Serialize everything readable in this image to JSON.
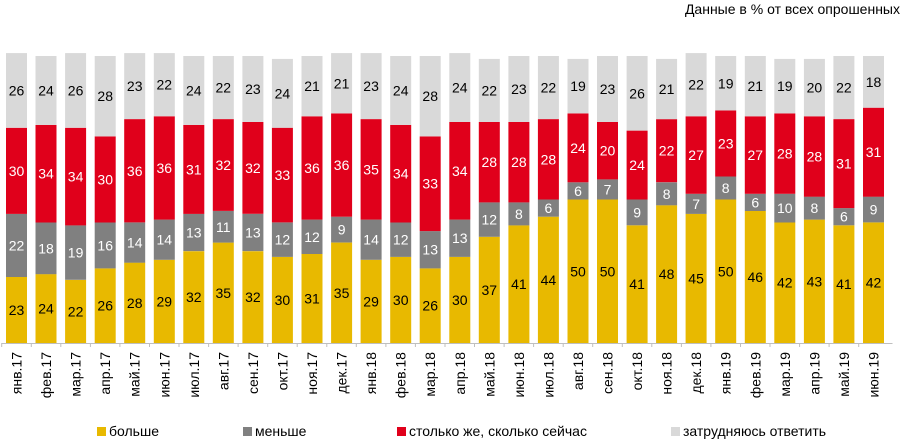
{
  "chart_data": {
    "type": "bar",
    "stacked": true,
    "title": "",
    "subtitle": "Данные в % от всех опрошенных",
    "xlabel": "",
    "ylabel": "",
    "ylim": [
      0,
      100
    ],
    "grid": false,
    "legend_position": "bottom",
    "categories": [
      "янв.17",
      "фев.17",
      "мар.17",
      "апр.17",
      "май.17",
      "июн.17",
      "июл.17",
      "авг.17",
      "сен.17",
      "окт.17",
      "ноя.17",
      "дек.17",
      "янв.18",
      "фев.18",
      "мар.18",
      "апр.18",
      "май.18",
      "июн.18",
      "июл.18",
      "авг.18",
      "сен.18",
      "окт.18",
      "ноя.18",
      "дек.18",
      "янв.19",
      "фев.19",
      "мар.19",
      "апр.19",
      "май.19",
      "июн.19"
    ],
    "series": [
      {
        "name": "больше",
        "color": "#E8B900",
        "label_color": "#000000",
        "values": [
          23,
          24,
          22,
          26,
          28,
          29,
          32,
          35,
          32,
          30,
          31,
          35,
          29,
          30,
          26,
          30,
          37,
          41,
          44,
          50,
          50,
          41,
          48,
          45,
          50,
          46,
          42,
          43,
          41,
          42
        ]
      },
      {
        "name": "меньше",
        "color": "#808080",
        "label_color": "#ffffff",
        "values": [
          22,
          18,
          19,
          16,
          14,
          14,
          13,
          11,
          13,
          12,
          12,
          9,
          14,
          12,
          13,
          13,
          12,
          8,
          6,
          6,
          7,
          9,
          8,
          7,
          8,
          6,
          10,
          8,
          6,
          9
        ]
      },
      {
        "name": "столько же, сколько сейчас",
        "color": "#E0001B",
        "label_color": "#ffffff",
        "values": [
          30,
          34,
          34,
          30,
          36,
          36,
          31,
          32,
          32,
          33,
          36,
          36,
          35,
          34,
          33,
          34,
          28,
          28,
          28,
          24,
          20,
          24,
          22,
          27,
          23,
          27,
          28,
          28,
          31,
          31
        ]
      },
      {
        "name": "затрудняюсь ответить",
        "color": "#D9D9D9",
        "label_color": "#000000",
        "values": [
          26,
          24,
          26,
          28,
          23,
          22,
          24,
          22,
          23,
          24,
          21,
          21,
          23,
          24,
          28,
          24,
          22,
          23,
          22,
          19,
          23,
          26,
          21,
          22,
          19,
          21,
          19,
          20,
          22,
          18
        ]
      }
    ]
  }
}
